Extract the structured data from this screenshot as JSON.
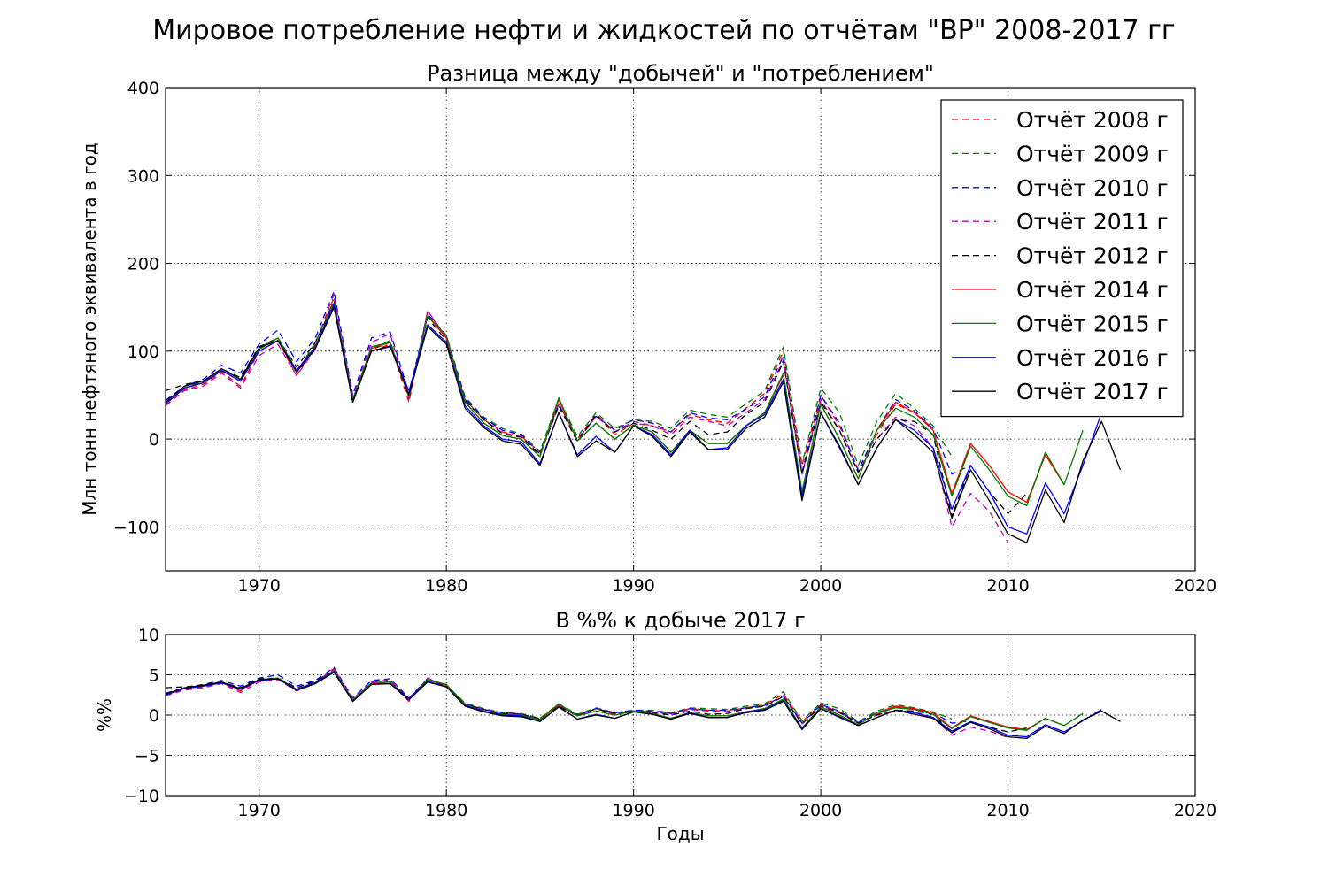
{
  "figure": {
    "suptitle": "Мировое потребление нефти и жидкостей по отчётам \"BP\" 2008-2017 гг"
  },
  "chart_data": [
    {
      "type": "line",
      "title": "Разница между \"добычей\" и \"потреблением\"",
      "xlabel": "",
      "ylabel": "Млн тонн нефтяного эквивалента в год",
      "xlim": [
        1965,
        2020
      ],
      "ylim": [
        -150,
        400
      ],
      "xticks": [
        1970,
        1980,
        1990,
        2000,
        2010,
        2020
      ],
      "yticks": [
        -100,
        0,
        100,
        200,
        300,
        400
      ],
      "ytick_labels": [
        "−100",
        "0",
        "100",
        "200",
        "300",
        "400"
      ],
      "grid": true,
      "legend_position": "top-right",
      "x_start": 1965,
      "series": [
        {
          "name": "Отчёт 2008 г",
          "color": "#ff0000",
          "style": "dashed",
          "values": [
            38,
            56,
            62,
            77,
            60,
            100,
            112,
            72,
            108,
            165,
            42,
            100,
            108,
            42,
            145,
            115,
            45,
            22,
            8,
            3,
            -15,
            40,
            0,
            28,
            5,
            18,
            15,
            8,
            28,
            22,
            18,
            35,
            52,
            100,
            -30,
            50,
            15,
            -35,
            5,
            40,
            30,
            12
          ]
        },
        {
          "name": "Отчёт 2009 г",
          "color": "#008000",
          "style": "dashed",
          "values": [
            42,
            58,
            65,
            80,
            68,
            104,
            115,
            76,
            110,
            158,
            45,
            104,
            112,
            48,
            140,
            118,
            48,
            25,
            12,
            6,
            -14,
            46,
            3,
            30,
            12,
            22,
            20,
            12,
            33,
            28,
            25,
            40,
            55,
            105,
            -28,
            58,
            30,
            -30,
            20,
            52,
            35,
            15,
            -20
          ]
        },
        {
          "name": "Отчёт 2010 г",
          "color": "#0000ff",
          "style": "dashed",
          "values": [
            44,
            60,
            68,
            84,
            75,
            108,
            124,
            88,
            115,
            168,
            50,
            115,
            122,
            52,
            142,
            118,
            46,
            24,
            10,
            5,
            -17,
            40,
            -1,
            26,
            10,
            22,
            18,
            8,
            30,
            24,
            22,
            34,
            48,
            95,
            -38,
            50,
            18,
            -36,
            10,
            45,
            32,
            12,
            -40,
            -30
          ]
        },
        {
          "name": "Отчёт 2011 г",
          "color": "#bf00bf",
          "style": "dashed",
          "values": [
            38,
            55,
            60,
            75,
            58,
            95,
            108,
            72,
            102,
            162,
            48,
            110,
            120,
            45,
            146,
            116,
            44,
            22,
            7,
            3,
            -18,
            38,
            -3,
            26,
            8,
            20,
            15,
            5,
            25,
            20,
            15,
            30,
            45,
            90,
            -40,
            45,
            10,
            -38,
            0,
            25,
            15,
            -10,
            -100,
            -62,
            -82,
            -118
          ]
        },
        {
          "name": "Отчёт 2012 г",
          "color": "#000000",
          "style": "dashed",
          "values": [
            55,
            62,
            66,
            80,
            70,
            105,
            115,
            82,
            110,
            155,
            45,
            102,
            110,
            50,
            138,
            112,
            44,
            22,
            6,
            2,
            -18,
            38,
            -3,
            28,
            8,
            18,
            10,
            0,
            20,
            5,
            8,
            28,
            42,
            88,
            -40,
            42,
            10,
            -38,
            0,
            22,
            20,
            5,
            -88,
            -30,
            -60,
            -85,
            -62
          ]
        },
        {
          "name": "Отчёт 2014 г",
          "color": "#ff0000",
          "style": "solid",
          "values": [
            40,
            58,
            64,
            78,
            66,
            100,
            112,
            78,
            105,
            155,
            45,
            103,
            110,
            48,
            140,
            115,
            42,
            18,
            4,
            0,
            -20,
            45,
            -2,
            18,
            0,
            16,
            8,
            -15,
            10,
            -5,
            -5,
            15,
            30,
            73,
            -60,
            40,
            0,
            -45,
            10,
            42,
            30,
            10,
            -62,
            -5,
            -30,
            -60,
            -72,
            -18,
            -52
          ]
        },
        {
          "name": "Отчёт 2015 г",
          "color": "#008000",
          "style": "solid",
          "values": [
            40,
            58,
            64,
            78,
            66,
            102,
            115,
            78,
            105,
            155,
            45,
            105,
            110,
            48,
            140,
            118,
            42,
            18,
            4,
            0,
            -20,
            47,
            -2,
            18,
            0,
            16,
            8,
            -15,
            10,
            -5,
            -5,
            15,
            30,
            75,
            -60,
            40,
            0,
            -45,
            10,
            35,
            25,
            5,
            -65,
            -8,
            -35,
            -65,
            -76,
            -15,
            -52,
            10
          ]
        },
        {
          "name": "Отчёт 2016 г",
          "color": "#0000ff",
          "style": "solid",
          "values": [
            40,
            58,
            64,
            78,
            66,
            100,
            112,
            78,
            105,
            153,
            42,
            100,
            105,
            55,
            130,
            110,
            38,
            15,
            0,
            -3,
            -28,
            30,
            -18,
            3,
            -15,
            15,
            5,
            -18,
            10,
            -12,
            -10,
            15,
            28,
            68,
            -65,
            30,
            -10,
            -52,
            -10,
            22,
            10,
            -10,
            -80,
            -30,
            -60,
            -100,
            -108,
            -50,
            -85,
            -30,
            30
          ]
        },
        {
          "name": "Отчёт 2017 г",
          "color": "#000000",
          "style": "solid",
          "values": [
            42,
            60,
            66,
            80,
            68,
            104,
            112,
            76,
            103,
            150,
            42,
            100,
            106,
            50,
            128,
            108,
            35,
            13,
            -2,
            -6,
            -30,
            30,
            -20,
            -2,
            -15,
            15,
            3,
            -20,
            8,
            -12,
            -12,
            12,
            25,
            65,
            -70,
            30,
            -8,
            -52,
            -10,
            22,
            5,
            -15,
            -90,
            -35,
            -70,
            -108,
            -118,
            -58,
            -95,
            -25,
            20,
            -35
          ]
        }
      ]
    },
    {
      "type": "line",
      "title": "В %% к добыче 2017 г",
      "xlabel": "Годы",
      "ylabel": "%%",
      "xlim": [
        1965,
        2020
      ],
      "ylim": [
        -10,
        10
      ],
      "xticks": [
        1970,
        1980,
        1990,
        2000,
        2010,
        2020
      ],
      "yticks": [
        -10,
        -5,
        0,
        5,
        10
      ],
      "ytick_labels": [
        "−10",
        "−5",
        "0",
        "5",
        "10"
      ],
      "grid": true,
      "x_start": 1965,
      "series": [
        {
          "name": "Отчёт 2008 г",
          "color": "#ff0000",
          "style": "dashed",
          "values": [
            2.4,
            3.2,
            3.5,
            4.0,
            3.0,
            4.3,
            4.5,
            3.0,
            4.0,
            5.8,
            1.8,
            3.8,
            4.0,
            1.7,
            4.5,
            3.6,
            1.4,
            0.7,
            0.2,
            0.1,
            -0.4,
            1.2,
            0.0,
            0.8,
            0.1,
            0.5,
            0.4,
            0.2,
            0.8,
            0.6,
            0.5,
            0.9,
            1.3,
            2.6,
            -0.8,
            1.3,
            0.4,
            -0.9,
            0.1,
            1.0,
            0.8,
            0.3
          ]
        },
        {
          "name": "Отчёт 2009 г",
          "color": "#008000",
          "style": "dashed",
          "values": [
            2.6,
            3.3,
            3.6,
            4.1,
            3.3,
            4.4,
            4.6,
            3.2,
            4.1,
            5.5,
            1.9,
            4.0,
            4.2,
            1.9,
            4.4,
            3.7,
            1.5,
            0.8,
            0.3,
            0.2,
            -0.4,
            1.4,
            0.1,
            0.9,
            0.3,
            0.6,
            0.6,
            0.3,
            0.9,
            0.8,
            0.7,
            1.1,
            1.4,
            2.9,
            -0.7,
            1.5,
            0.8,
            -0.8,
            0.5,
            1.3,
            0.9,
            0.4,
            -0.5
          ]
        },
        {
          "name": "Отчёт 2010 г",
          "color": "#0000ff",
          "style": "dashed",
          "values": [
            2.7,
            3.4,
            3.8,
            4.3,
            3.6,
            4.6,
            5.0,
            3.6,
            4.3,
            5.9,
            2.1,
            4.3,
            4.5,
            2.1,
            4.5,
            3.7,
            1.4,
            0.7,
            0.3,
            0.1,
            -0.5,
            1.2,
            0.0,
            0.8,
            0.3,
            0.6,
            0.5,
            0.2,
            0.8,
            0.6,
            0.6,
            0.9,
            1.2,
            2.4,
            -1.0,
            1.3,
            0.5,
            -0.9,
            0.3,
            1.1,
            0.8,
            0.3,
            -1.0,
            -0.7
          ]
        },
        {
          "name": "Отчёт 2011 г",
          "color": "#bf00bf",
          "style": "dashed",
          "values": [
            2.4,
            3.1,
            3.4,
            3.9,
            2.8,
            4.1,
            4.4,
            3.0,
            3.9,
            5.7,
            2.0,
            4.1,
            4.4,
            1.8,
            4.6,
            3.7,
            1.3,
            0.7,
            0.2,
            0.1,
            -0.5,
            1.1,
            -0.1,
            0.8,
            0.2,
            0.5,
            0.4,
            0.1,
            0.7,
            0.5,
            0.4,
            0.8,
            1.1,
            2.3,
            -1.1,
            1.2,
            0.3,
            -1.0,
            0.0,
            0.6,
            0.4,
            -0.3,
            -2.5,
            -1.5,
            -2.0,
            -2.8
          ]
        },
        {
          "name": "Отчёт 2012 г",
          "color": "#000000",
          "style": "dashed",
          "values": [
            3.4,
            3.5,
            3.7,
            4.1,
            3.4,
            4.5,
            4.6,
            3.4,
            4.2,
            5.5,
            1.8,
            3.9,
            4.1,
            2.0,
            4.4,
            3.6,
            1.3,
            0.7,
            0.2,
            0.1,
            -0.5,
            1.1,
            -0.1,
            0.8,
            0.2,
            0.5,
            0.3,
            0.0,
            0.5,
            0.1,
            0.2,
            0.8,
            1.1,
            2.3,
            -1.1,
            1.1,
            0.3,
            -1.0,
            0.0,
            0.6,
            0.5,
            0.1,
            -2.2,
            -0.8,
            -1.5,
            -2.1,
            -1.6
          ]
        },
        {
          "name": "Отчёт 2014 г",
          "color": "#ff0000",
          "style": "solid",
          "values": [
            2.5,
            3.3,
            3.6,
            4.0,
            3.2,
            4.3,
            4.5,
            3.2,
            4.0,
            5.5,
            1.8,
            3.9,
            4.1,
            1.9,
            4.4,
            3.7,
            1.3,
            0.5,
            0.1,
            0.0,
            -0.6,
            1.3,
            -0.1,
            0.5,
            0.0,
            0.5,
            0.2,
            -0.4,
            0.3,
            -0.1,
            -0.1,
            0.4,
            0.8,
            1.9,
            -1.6,
            1.0,
            0.0,
            -1.2,
            0.3,
            1.1,
            0.8,
            0.3,
            -1.6,
            -0.1,
            -0.8,
            -1.5,
            -1.8,
            -0.4,
            -1.3
          ]
        },
        {
          "name": "Отчёт 2015 г",
          "color": "#008000",
          "style": "solid",
          "values": [
            2.5,
            3.3,
            3.6,
            4.0,
            3.2,
            4.4,
            4.6,
            3.2,
            4.0,
            5.5,
            1.8,
            4.0,
            4.1,
            1.9,
            4.4,
            3.8,
            1.3,
            0.5,
            0.1,
            0.0,
            -0.6,
            1.4,
            -0.1,
            0.5,
            0.0,
            0.5,
            0.2,
            -0.4,
            0.3,
            -0.1,
            -0.1,
            0.4,
            0.8,
            2.0,
            -1.6,
            1.0,
            0.0,
            -1.2,
            0.3,
            0.9,
            0.7,
            0.1,
            -1.7,
            -0.2,
            -0.9,
            -1.6,
            -1.9,
            -0.4,
            -1.3,
            0.2
          ]
        },
        {
          "name": "Отчёт 2016 г",
          "color": "#0000ff",
          "style": "solid",
          "values": [
            2.5,
            3.3,
            3.6,
            4.0,
            3.2,
            4.3,
            4.5,
            3.2,
            4.0,
            5.4,
            1.7,
            3.8,
            3.9,
            2.1,
            4.2,
            3.5,
            1.2,
            0.5,
            0.0,
            -0.1,
            -0.8,
            1.0,
            -0.5,
            0.1,
            -0.4,
            0.4,
            0.1,
            -0.5,
            0.3,
            -0.3,
            -0.3,
            0.4,
            0.7,
            1.8,
            -1.7,
            0.8,
            -0.3,
            -1.3,
            -0.3,
            0.6,
            0.3,
            -0.3,
            -2.0,
            -0.8,
            -1.5,
            -2.5,
            -2.7,
            -1.2,
            -2.1,
            -0.7,
            0.7
          ]
        },
        {
          "name": "Отчёт 2017 г",
          "color": "#000000",
          "style": "solid",
          "values": [
            2.6,
            3.4,
            3.7,
            4.1,
            3.3,
            4.4,
            4.5,
            3.1,
            3.9,
            5.3,
            1.7,
            3.8,
            3.9,
            1.9,
            4.1,
            3.5,
            1.1,
            0.4,
            -0.1,
            -0.2,
            -0.8,
            1.0,
            -0.5,
            0.0,
            -0.4,
            0.4,
            0.1,
            -0.5,
            0.2,
            -0.3,
            -0.3,
            0.3,
            0.6,
            1.7,
            -1.8,
            0.8,
            -0.2,
            -1.3,
            -0.3,
            0.6,
            0.1,
            -0.4,
            -2.2,
            -0.9,
            -1.7,
            -2.7,
            -2.9,
            -1.4,
            -2.3,
            -0.6,
            0.5,
            -0.8
          ]
        }
      ]
    }
  ]
}
